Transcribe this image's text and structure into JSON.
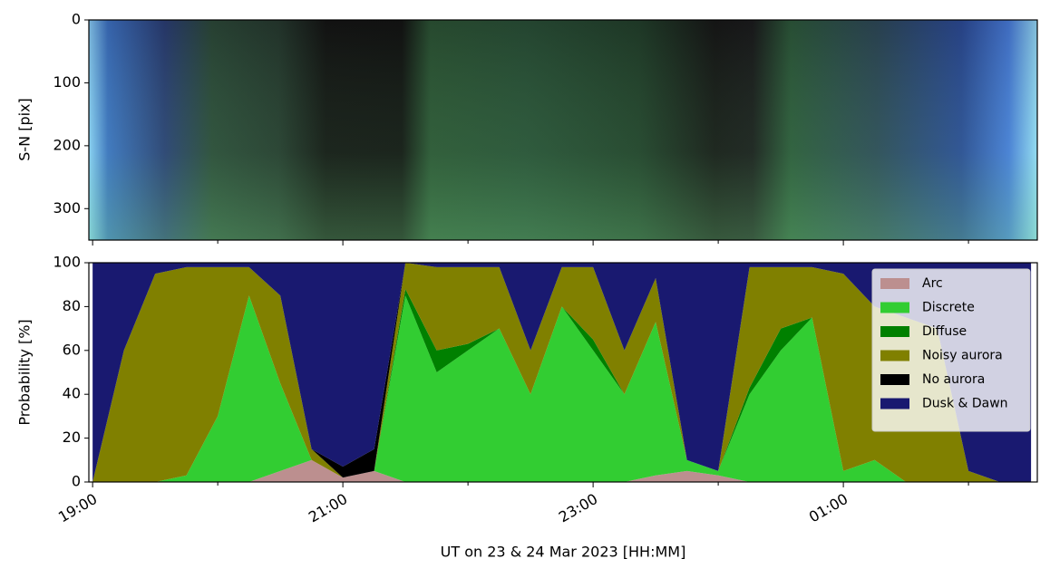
{
  "chart_data": [
    {
      "type": "image",
      "ylabel": "S-N [pix]",
      "ylim": [
        350,
        0
      ],
      "yticks": [
        0,
        100,
        200,
        300
      ]
    },
    {
      "type": "stacked-area",
      "xlabel": "UT on 23 & 24 Mar 2023 [HH:MM]",
      "ylabel": "Probability [%]",
      "xlim": [
        18.97,
        26.55
      ],
      "xticks": [
        {
          "value": 19,
          "label": "19:00"
        },
        {
          "value": 21,
          "label": "21:00"
        },
        {
          "value": 23,
          "label": "23:00"
        },
        {
          "value": 25,
          "label": "01:00"
        }
      ],
      "xminorticks": [
        20,
        22,
        24,
        26
      ],
      "ylim": [
        0,
        100
      ],
      "yticks": [
        0,
        20,
        40,
        60,
        80,
        100
      ],
      "legend": "upper right",
      "x": [
        19,
        19.25,
        19.5,
        19.75,
        20,
        20.25,
        20.5,
        20.75,
        21,
        21.25,
        21.5,
        21.75,
        22,
        22.25,
        22.5,
        22.75,
        23,
        23.25,
        23.5,
        23.75,
        24,
        24.25,
        24.5,
        24.75,
        25,
        25.25,
        25.5,
        25.75,
        26,
        26.25,
        26.5
      ],
      "series": [
        {
          "name": "Arc",
          "color": "#bc8f8f",
          "values": [
            0,
            0,
            0,
            0,
            0,
            0,
            5,
            10,
            2,
            5,
            0,
            0,
            0,
            0,
            0,
            0,
            0,
            0,
            3,
            5,
            3,
            0,
            0,
            0,
            0,
            0,
            0,
            0,
            0,
            0,
            0
          ]
        },
        {
          "name": "Discrete",
          "color": "#32cd32",
          "values": [
            0,
            0,
            0,
            3,
            30,
            85,
            40,
            0,
            0,
            0,
            85,
            50,
            60,
            70,
            40,
            80,
            60,
            40,
            70,
            5,
            2,
            40,
            60,
            75,
            5,
            10,
            0,
            0,
            0,
            0,
            0
          ]
        },
        {
          "name": "Diffuse",
          "color": "#008000",
          "values": [
            0,
            0,
            0,
            0,
            0,
            0,
            0,
            0,
            0,
            0,
            3,
            10,
            3,
            0,
            0,
            0,
            5,
            0,
            0,
            0,
            0,
            3,
            10,
            0,
            0,
            0,
            0,
            0,
            0,
            0,
            0
          ]
        },
        {
          "name": "Noisy aurora",
          "color": "#808000",
          "values": [
            0,
            60,
            95,
            95,
            68,
            13,
            40,
            5,
            0,
            0,
            12,
            38,
            35,
            28,
            20,
            18,
            33,
            20,
            20,
            0,
            0,
            55,
            28,
            23,
            90,
            70,
            75,
            70,
            5,
            0,
            0
          ]
        },
        {
          "name": "No aurora",
          "color": "#000000",
          "values": [
            0,
            0,
            0,
            0,
            0,
            0,
            0,
            0,
            5,
            10,
            0,
            0,
            0,
            0,
            0,
            0,
            0,
            0,
            0,
            0,
            0,
            0,
            0,
            0,
            0,
            0,
            0,
            0,
            0,
            0,
            0
          ]
        },
        {
          "name": "Dusk & Dawn",
          "color": "#191970",
          "values": [
            100,
            40,
            5,
            2,
            2,
            2,
            15,
            85,
            93,
            85,
            0,
            2,
            2,
            2,
            40,
            2,
            2,
            40,
            7,
            90,
            95,
            2,
            2,
            2,
            5,
            20,
            25,
            30,
            95,
            100,
            100
          ]
        }
      ]
    }
  ]
}
